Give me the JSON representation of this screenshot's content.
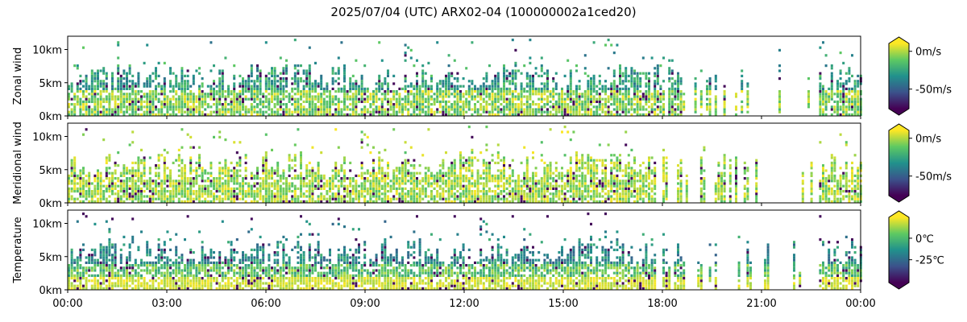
{
  "chart_data": {
    "type": "heatmap",
    "title": "2025/07/04 (UTC) ARX02-04 (100000002a1ced20)",
    "x": {
      "ticks": [
        "00:00",
        "03:00",
        "06:00",
        "09:00",
        "12:00",
        "15:00",
        "18:00",
        "21:00",
        "00:00"
      ],
      "range_hours": [
        0,
        24
      ]
    },
    "y": {
      "ticks": [
        "0km",
        "5km",
        "10km"
      ],
      "range_km": [
        0,
        12
      ]
    },
    "colormap": "viridis",
    "colormap_stops": [
      "#440154",
      "#3b528b",
      "#21918c",
      "#5ec962",
      "#fde725"
    ],
    "panels": [
      {
        "ylabel": "Zonal wind",
        "colorbar": {
          "ticks": [
            "0m/s",
            "-50m/s"
          ],
          "tick_fractions": [
            0.88,
            0.3
          ],
          "extend": "both"
        },
        "value_range": [
          -80,
          10
        ]
      },
      {
        "ylabel": "Meridional wind",
        "colorbar": {
          "ticks": [
            "0m/s",
            "-50m/s"
          ],
          "tick_fractions": [
            0.88,
            0.3
          ],
          "extend": "both"
        },
        "value_range": [
          -80,
          10
        ]
      },
      {
        "ylabel": "Temperature",
        "colorbar": {
          "ticks": [
            "0℃",
            "-25℃"
          ],
          "tick_fractions": [
            0.68,
            0.35
          ],
          "extend": "both"
        },
        "value_range": [
          -50,
          15
        ]
      }
    ]
  }
}
